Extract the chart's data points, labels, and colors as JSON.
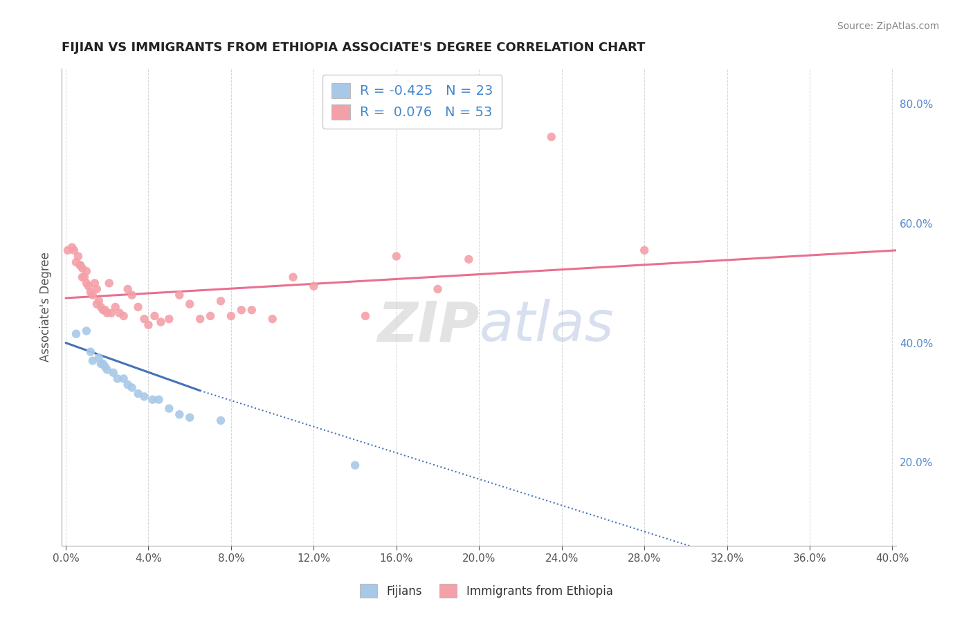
{
  "title": "FIJIAN VS IMMIGRANTS FROM ETHIOPIA ASSOCIATE'S DEGREE CORRELATION CHART",
  "source": "Source: ZipAtlas.com",
  "ylabel": "Associate's Degree",
  "watermark_part1": "ZIP",
  "watermark_part2": "atlas",
  "xlim": [
    -0.002,
    0.402
  ],
  "ylim": [
    0.06,
    0.86
  ],
  "xtick_vals": [
    0.0,
    0.04,
    0.08,
    0.12,
    0.16,
    0.2,
    0.24,
    0.28,
    0.32,
    0.36,
    0.4
  ],
  "ytick_right_vals": [
    0.2,
    0.4,
    0.6,
    0.8
  ],
  "blue_R": -0.425,
  "blue_N": 23,
  "pink_R": 0.076,
  "pink_N": 53,
  "blue_scatter_color": "#a8c8e8",
  "pink_scatter_color": "#f4a0a8",
  "blue_line_color": "#4472b8",
  "pink_line_color": "#e87090",
  "blue_scatter_x": [
    0.005,
    0.01,
    0.012,
    0.013,
    0.016,
    0.017,
    0.018,
    0.019,
    0.02,
    0.023,
    0.025,
    0.028,
    0.03,
    0.032,
    0.035,
    0.038,
    0.042,
    0.045,
    0.05,
    0.055,
    0.06,
    0.075,
    0.14
  ],
  "blue_scatter_y": [
    0.415,
    0.42,
    0.385,
    0.37,
    0.375,
    0.365,
    0.365,
    0.36,
    0.355,
    0.35,
    0.34,
    0.34,
    0.33,
    0.325,
    0.315,
    0.31,
    0.305,
    0.305,
    0.29,
    0.28,
    0.275,
    0.27,
    0.195
  ],
  "pink_scatter_x": [
    0.001,
    0.003,
    0.004,
    0.005,
    0.006,
    0.007,
    0.007,
    0.008,
    0.008,
    0.009,
    0.01,
    0.01,
    0.011,
    0.012,
    0.013,
    0.014,
    0.015,
    0.015,
    0.016,
    0.017,
    0.018,
    0.019,
    0.02,
    0.021,
    0.022,
    0.024,
    0.026,
    0.028,
    0.03,
    0.032,
    0.035,
    0.038,
    0.04,
    0.043,
    0.046,
    0.05,
    0.055,
    0.06,
    0.065,
    0.07,
    0.075,
    0.08,
    0.085,
    0.09,
    0.1,
    0.11,
    0.12,
    0.145,
    0.16,
    0.18,
    0.195,
    0.235,
    0.28
  ],
  "pink_scatter_y": [
    0.555,
    0.56,
    0.555,
    0.535,
    0.545,
    0.53,
    0.53,
    0.525,
    0.51,
    0.51,
    0.52,
    0.5,
    0.495,
    0.485,
    0.48,
    0.5,
    0.49,
    0.465,
    0.47,
    0.46,
    0.455,
    0.455,
    0.45,
    0.5,
    0.45,
    0.46,
    0.45,
    0.445,
    0.49,
    0.48,
    0.46,
    0.44,
    0.43,
    0.445,
    0.435,
    0.44,
    0.48,
    0.465,
    0.44,
    0.445,
    0.47,
    0.445,
    0.455,
    0.455,
    0.44,
    0.51,
    0.495,
    0.445,
    0.545,
    0.49,
    0.54,
    0.745,
    0.555
  ],
  "blue_trend_x0": 0.0,
  "blue_trend_y0": 0.4,
  "blue_trend_x1": 0.065,
  "blue_trend_y1": 0.32,
  "blue_trend_xdash": 0.065,
  "blue_trend_ydash": 0.32,
  "blue_trend_xend": 0.402,
  "blue_trend_yend": -0.05,
  "pink_trend_x0": 0.0,
  "pink_trend_y0": 0.475,
  "pink_trend_x1": 0.402,
  "pink_trend_y1": 0.555,
  "background_color": "#ffffff",
  "grid_color": "#cccccc",
  "axis_color": "#aaaaaa"
}
